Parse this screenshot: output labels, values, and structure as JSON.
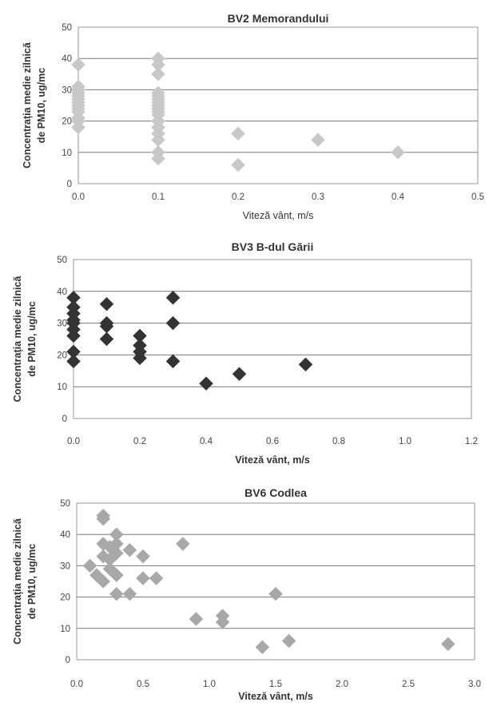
{
  "chart_data": [
    {
      "type": "scatter",
      "title": "BV2 Memorandului",
      "xlabel": "Viteză vânt, m/s",
      "ylabel": [
        "Concentrația medie zilnică",
        "de PM10, ug/mc"
      ],
      "xlim": [
        0,
        0.5
      ],
      "ylim": [
        0,
        50
      ],
      "xticks": [
        "0.0",
        "0.1",
        "0.2",
        "0.3",
        "0.4",
        "0.5"
      ],
      "yticks": [
        "0",
        "10",
        "20",
        "30",
        "40",
        "50"
      ],
      "grid": true,
      "color": "#c8c8c8",
      "points": [
        [
          0,
          18
        ],
        [
          0,
          20
        ],
        [
          0,
          21
        ],
        [
          0,
          23
        ],
        [
          0,
          24
        ],
        [
          0,
          25
        ],
        [
          0,
          26
        ],
        [
          0,
          27
        ],
        [
          0,
          28
        ],
        [
          0,
          29
        ],
        [
          0,
          30
        ],
        [
          0,
          31
        ],
        [
          0,
          38
        ],
        [
          0.1,
          8
        ],
        [
          0.1,
          10
        ],
        [
          0.1,
          14
        ],
        [
          0.1,
          16
        ],
        [
          0.1,
          18
        ],
        [
          0.1,
          20
        ],
        [
          0.1,
          22
        ],
        [
          0.1,
          23
        ],
        [
          0.1,
          24
        ],
        [
          0.1,
          25
        ],
        [
          0.1,
          26
        ],
        [
          0.1,
          27
        ],
        [
          0.1,
          28
        ],
        [
          0.1,
          29
        ],
        [
          0.1,
          35
        ],
        [
          0.1,
          38
        ],
        [
          0.1,
          40
        ],
        [
          0.2,
          6
        ],
        [
          0.2,
          16
        ],
        [
          0.3,
          14
        ],
        [
          0.4,
          10
        ]
      ]
    },
    {
      "type": "scatter",
      "title": "BV3 B-dul Gării",
      "xlabel": "Viteză vânt, m/s",
      "ylabel": [
        "Concentrația medie zilnică",
        "de PM10, ug/mc"
      ],
      "xlim": [
        0,
        1.2
      ],
      "ylim": [
        0,
        50
      ],
      "xticks": [
        "0.0",
        "0.2",
        "0.4",
        "0.6",
        "0.8",
        "1.0",
        "1.2"
      ],
      "yticks": [
        "0",
        "10",
        "20",
        "30",
        "40",
        "50"
      ],
      "grid": true,
      "color": "#333333",
      "points": [
        [
          0,
          18
        ],
        [
          0,
          21
        ],
        [
          0,
          26
        ],
        [
          0,
          28
        ],
        [
          0,
          30
        ],
        [
          0,
          31
        ],
        [
          0,
          33
        ],
        [
          0,
          35
        ],
        [
          0,
          38
        ],
        [
          0.1,
          25
        ],
        [
          0.1,
          29
        ],
        [
          0.1,
          30
        ],
        [
          0.1,
          36
        ],
        [
          0.2,
          19
        ],
        [
          0.2,
          21
        ],
        [
          0.2,
          23
        ],
        [
          0.2,
          26
        ],
        [
          0.3,
          18
        ],
        [
          0.3,
          30
        ],
        [
          0.3,
          38
        ],
        [
          0.4,
          11
        ],
        [
          0.5,
          14
        ],
        [
          0.7,
          17
        ]
      ]
    },
    {
      "type": "scatter",
      "title": "BV6 Codlea",
      "xlabel": "Viteză vânt, m/s",
      "ylabel": [
        "Concentrația medie zilnică",
        "de PM10, ug/mc"
      ],
      "xlim": [
        0,
        3.0
      ],
      "ylim": [
        0,
        50
      ],
      "xticks": [
        "0.0",
        "0.5",
        "1.0",
        "1.5",
        "2.0",
        "2.5",
        "3.0"
      ],
      "yticks": [
        "0",
        "10",
        "20",
        "30",
        "40",
        "50"
      ],
      "grid": true,
      "color": "#a8a8a8",
      "points": [
        [
          0.1,
          30
        ],
        [
          0.15,
          27
        ],
        [
          0.2,
          25
        ],
        [
          0.2,
          33
        ],
        [
          0.2,
          37
        ],
        [
          0.2,
          45
        ],
        [
          0.2,
          46
        ],
        [
          0.25,
          29
        ],
        [
          0.25,
          32
        ],
        [
          0.25,
          36
        ],
        [
          0.3,
          21
        ],
        [
          0.3,
          27
        ],
        [
          0.3,
          34
        ],
        [
          0.3,
          37
        ],
        [
          0.3,
          40
        ],
        [
          0.4,
          21
        ],
        [
          0.4,
          35
        ],
        [
          0.5,
          26
        ],
        [
          0.5,
          33
        ],
        [
          0.6,
          26
        ],
        [
          0.8,
          37
        ],
        [
          0.9,
          13
        ],
        [
          1.1,
          12
        ],
        [
          1.1,
          14
        ],
        [
          1.4,
          4
        ],
        [
          1.5,
          21
        ],
        [
          1.6,
          6
        ],
        [
          2.8,
          5
        ]
      ]
    }
  ]
}
